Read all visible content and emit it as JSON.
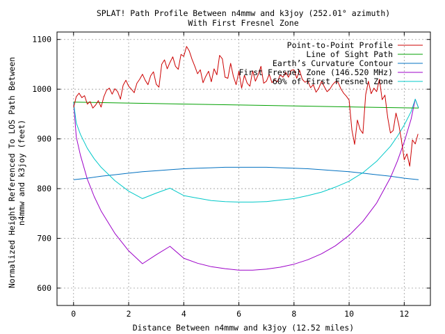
{
  "chart_data": {
    "type": "line",
    "title_line1": "SPLAT! Path Profile Between n4mmw and k3joy (252.01° azimuth)",
    "title_line2": "With First Fresnel Zone",
    "xlabel": "Distance Between n4mmw and k3joy (12.52 miles)",
    "ylabel_line1": "Normalized Height Referenced To LOS Path Between",
    "ylabel_line2": "n4mmw and k3joy (feet)",
    "xlim": [
      -0.6,
      12.95
    ],
    "ylim": [
      565,
      1115
    ],
    "xticks": [
      0,
      2,
      4,
      6,
      8,
      10,
      12
    ],
    "yticks": [
      600,
      700,
      800,
      900,
      1000,
      1100
    ],
    "grid": true,
    "legend_position": "top-right",
    "series": [
      {
        "name": "Point-to-Point Profile",
        "color": "#cc0000",
        "x": [
          0.0,
          0.1,
          0.2,
          0.3,
          0.4,
          0.5,
          0.6,
          0.7,
          0.8,
          0.9,
          1.0,
          1.1,
          1.2,
          1.3,
          1.4,
          1.5,
          1.6,
          1.7,
          1.8,
          1.9,
          2.0,
          2.1,
          2.2,
          2.3,
          2.4,
          2.5,
          2.6,
          2.7,
          2.8,
          2.9,
          3.0,
          3.1,
          3.2,
          3.3,
          3.4,
          3.5,
          3.6,
          3.7,
          3.8,
          3.9,
          4.0,
          4.1,
          4.2,
          4.3,
          4.4,
          4.5,
          4.6,
          4.7,
          4.8,
          4.9,
          5.0,
          5.1,
          5.2,
          5.3,
          5.4,
          5.5,
          5.6,
          5.7,
          5.8,
          5.9,
          6.0,
          6.1,
          6.2,
          6.3,
          6.4,
          6.5,
          6.6,
          6.7,
          6.8,
          6.9,
          7.0,
          7.1,
          7.2,
          7.3,
          7.4,
          7.5,
          7.6,
          7.7,
          7.8,
          7.9,
          8.0,
          8.1,
          8.2,
          8.3,
          8.4,
          8.5,
          8.6,
          8.7,
          8.8,
          8.9,
          9.0,
          9.1,
          9.2,
          9.3,
          9.4,
          9.5,
          9.6,
          9.7,
          9.8,
          9.9,
          10.0,
          10.1,
          10.2,
          10.3,
          10.4,
          10.5,
          10.6,
          10.7,
          10.8,
          10.9,
          11.0,
          11.1,
          11.2,
          11.3,
          11.4,
          11.5,
          11.6,
          11.7,
          11.8,
          11.9,
          12.0,
          12.1,
          12.2,
          12.3,
          12.4,
          12.5
        ],
        "y": [
          963,
          985,
          992,
          983,
          987,
          970,
          975,
          962,
          968,
          977,
          964,
          985,
          998,
          1002,
          990,
          1001,
          995,
          980,
          1008,
          1018,
          1006,
          1000,
          993,
          1012,
          1020,
          1030,
          1018,
          1009,
          1027,
          1035,
          1010,
          1004,
          1050,
          1059,
          1041,
          1054,
          1065,
          1046,
          1040,
          1070,
          1066,
          1086,
          1077,
          1060,
          1046,
          1031,
          1039,
          1013,
          1026,
          1036,
          1015,
          1041,
          1029,
          1068,
          1061,
          1024,
          1022,
          1052,
          1026,
          1009,
          1036,
          1002,
          1028,
          1012,
          1006,
          1037,
          1016,
          1029,
          1046,
          1012,
          1016,
          1030,
          1013,
          1019,
          1015,
          1029,
          1024,
          1034,
          1024,
          1038,
          1039,
          1022,
          1038,
          1020,
          1014,
          1017,
          1003,
          1009,
          994,
          1002,
          1016,
          1005,
          995,
          1000,
          1009,
          1015,
          1014,
          1001,
          992,
          986,
          978,
          918,
          889,
          938,
          919,
          911,
          989,
          1016,
          991,
          1002,
          995,
          1020,
          979,
          988,
          943,
          912,
          917,
          952,
          930,
          897,
          858,
          870,
          845,
          898,
          890,
          910
        ]
      },
      {
        "name": "Line of Sight Path",
        "color": "#00a000",
        "x": [
          0,
          12.52
        ],
        "y": [
          974,
          962
        ]
      },
      {
        "name": "Earth’s Curvature Contour",
        "color": "#0070c0",
        "x": [
          0,
          0.5,
          1,
          1.5,
          2,
          2.5,
          3,
          3.5,
          4,
          4.5,
          5,
          5.5,
          6,
          6.26,
          6.5,
          7,
          7.5,
          8,
          8.5,
          9,
          9.5,
          10,
          10.5,
          11,
          11.5,
          12,
          12.52
        ],
        "y": [
          818,
          821,
          825,
          828,
          831,
          834,
          836,
          838,
          840,
          841,
          842,
          843,
          843,
          843,
          843,
          843,
          842,
          841,
          840,
          838,
          836,
          834,
          831,
          828,
          825,
          821,
          818
        ]
      },
      {
        "name": "First Fresnel Zone (146.520 MHz)",
        "color": "#9c00c8",
        "x": [
          0,
          0.1,
          0.25,
          0.5,
          0.75,
          1,
          1.5,
          2,
          2.5,
          3,
          3.5,
          4,
          4.5,
          5,
          5.5,
          6,
          6.26,
          6.5,
          7,
          7.5,
          8,
          8.5,
          9,
          9.5,
          10,
          10.5,
          11,
          11.5,
          11.75,
          12,
          12.25,
          12.4,
          12.52
        ],
        "y": [
          974,
          904,
          867,
          819,
          784,
          755,
          710,
          675,
          649,
          667,
          684,
          660,
          650,
          643,
          639,
          636,
          636,
          636,
          638,
          642,
          648,
          657,
          669,
          685,
          706,
          734,
          771,
          822,
          855,
          894,
          940,
          980,
          962
        ]
      },
      {
        "name": "60% of First Fresnel Zone",
        "color": "#00c8c8",
        "x": [
          0,
          0.1,
          0.25,
          0.5,
          0.75,
          1,
          1.5,
          2,
          2.5,
          3,
          3.5,
          4,
          4.5,
          5,
          5.5,
          6,
          6.26,
          6.5,
          7,
          7.5,
          8,
          8.5,
          9,
          9.5,
          10,
          10.5,
          11,
          11.5,
          11.75,
          12,
          12.25,
          12.4,
          12.52
        ],
        "y": [
          974,
          932,
          909,
          881,
          860,
          843,
          816,
          795,
          780,
          791,
          801,
          786,
          781,
          776,
          774,
          773,
          773,
          773,
          774,
          777,
          780,
          786,
          793,
          803,
          815,
          832,
          855,
          885,
          905,
          928,
          955,
          980,
          962
        ]
      }
    ]
  }
}
